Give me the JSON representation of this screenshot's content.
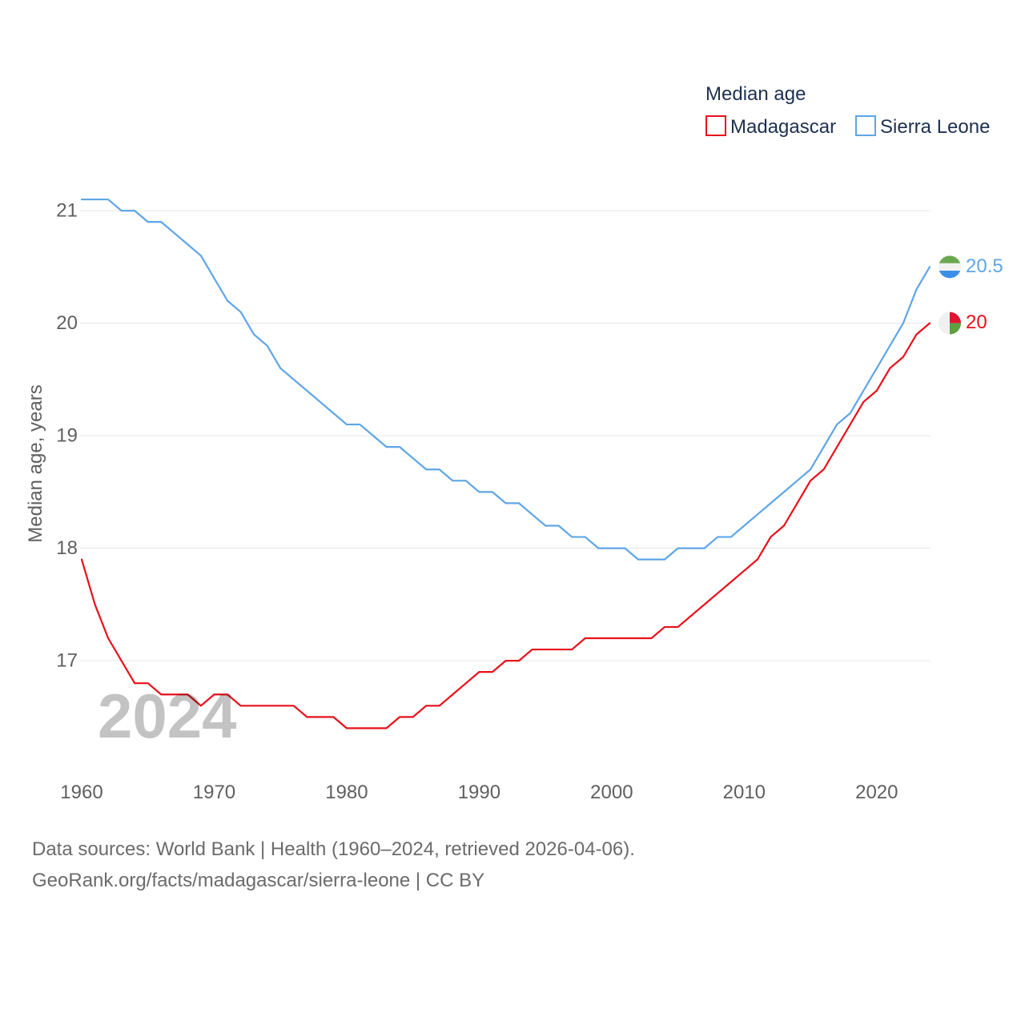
{
  "chart_data": {
    "type": "line",
    "ylabel": "Median age, years",
    "legend_title": "Median age",
    "legend_position": "top-right",
    "grid": true,
    "xlim": [
      1960,
      2024
    ],
    "ylim": [
      16.2,
      21.2
    ],
    "x_ticks": [
      1960,
      1970,
      1980,
      1990,
      2000,
      2010,
      2020
    ],
    "y_ticks": [
      17,
      18,
      19,
      20,
      21
    ],
    "year_label": "2024",
    "x": [
      1960,
      1961,
      1962,
      1963,
      1964,
      1965,
      1966,
      1967,
      1968,
      1969,
      1970,
      1971,
      1972,
      1973,
      1974,
      1975,
      1976,
      1977,
      1978,
      1979,
      1980,
      1981,
      1982,
      1983,
      1984,
      1985,
      1986,
      1987,
      1988,
      1989,
      1990,
      1991,
      1992,
      1993,
      1994,
      1995,
      1996,
      1997,
      1998,
      1999,
      2000,
      2001,
      2002,
      2003,
      2004,
      2005,
      2006,
      2007,
      2008,
      2009,
      2010,
      2011,
      2012,
      2013,
      2014,
      2015,
      2016,
      2017,
      2018,
      2019,
      2020,
      2021,
      2022,
      2023,
      2024
    ],
    "series": [
      {
        "name": "Madagascar",
        "color": "#e8101a",
        "end_label": "20",
        "flag_icon": "madagascar-flag-icon",
        "flag_colors": [
          "#f0f0f0",
          "#e0162f",
          "#5e9f3e"
        ],
        "values": [
          17.9,
          17.5,
          17.2,
          17.0,
          16.8,
          16.8,
          16.7,
          16.7,
          16.7,
          16.6,
          16.7,
          16.7,
          16.6,
          16.6,
          16.6,
          16.6,
          16.6,
          16.5,
          16.5,
          16.5,
          16.4,
          16.4,
          16.4,
          16.4,
          16.5,
          16.5,
          16.6,
          16.6,
          16.7,
          16.8,
          16.9,
          16.9,
          17.0,
          17.0,
          17.1,
          17.1,
          17.1,
          17.1,
          17.2,
          17.2,
          17.2,
          17.2,
          17.2,
          17.2,
          17.3,
          17.3,
          17.4,
          17.5,
          17.6,
          17.7,
          17.8,
          17.9,
          18.1,
          18.2,
          18.4,
          18.6,
          18.7,
          18.9,
          19.1,
          19.3,
          19.4,
          19.6,
          19.7,
          19.9,
          20.0
        ]
      },
      {
        "name": "Sierra Leone",
        "color": "#5ea6e6",
        "end_label": "20.5",
        "flag_icon": "sierra-leone-flag-icon",
        "flag_colors": [
          "#6aa84f",
          "#f2f2f2",
          "#3b8fe8"
        ],
        "values": [
          21.1,
          21.1,
          21.1,
          21.0,
          21.0,
          20.9,
          20.9,
          20.8,
          20.7,
          20.6,
          20.4,
          20.2,
          20.1,
          19.9,
          19.8,
          19.6,
          19.5,
          19.4,
          19.3,
          19.2,
          19.1,
          19.1,
          19.0,
          18.9,
          18.9,
          18.8,
          18.7,
          18.7,
          18.6,
          18.6,
          18.5,
          18.5,
          18.4,
          18.4,
          18.3,
          18.2,
          18.2,
          18.1,
          18.1,
          18.0,
          18.0,
          18.0,
          17.9,
          17.9,
          17.9,
          18.0,
          18.0,
          18.0,
          18.1,
          18.1,
          18.2,
          18.3,
          18.4,
          18.5,
          18.6,
          18.7,
          18.9,
          19.1,
          19.2,
          19.4,
          19.6,
          19.8,
          20.0,
          20.3,
          20.5
        ]
      }
    ]
  },
  "footer": {
    "sources": "Data sources: World Bank | Health (1960–2024, retrieved 2026-04-06).",
    "attribution": "GeoRank.org/facts/madagascar/sierra-leone | CC BY"
  }
}
